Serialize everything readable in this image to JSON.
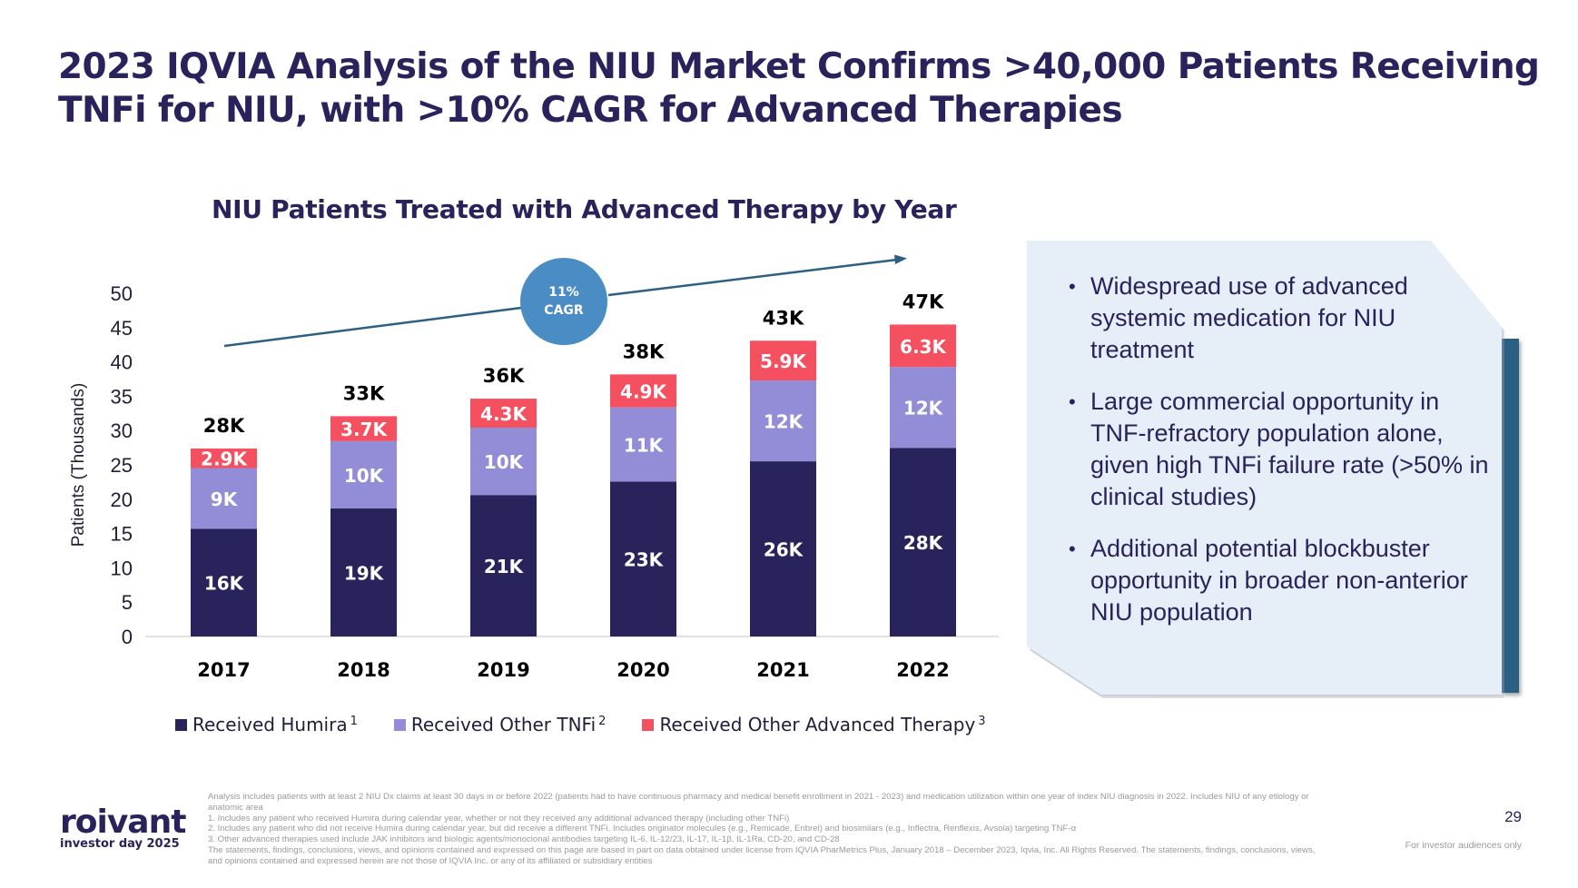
{
  "header": {
    "title": "2023 IQVIA Analysis of the NIU Market Confirms >40,000 Patients Receiving TNFi for NIU, with >10% CAGR for Advanced Therapies"
  },
  "colors": {
    "navy": "#29235c",
    "lavender": "#928dd6",
    "red": "#f4505f",
    "cagr_circle": "#4a8cc4",
    "arrow": "#2c5f84",
    "panel_bg": "#e6eef7",
    "panel_accent": "#2c5f84"
  },
  "chart_data": {
    "type": "bar",
    "stacked": true,
    "title": "NIU Patients Treated with Advanced Therapy by Year",
    "xlabel": "",
    "ylabel": "Patients (Thousands)",
    "ylim": [
      0,
      50
    ],
    "yticks": [
      0,
      5,
      10,
      15,
      20,
      25,
      30,
      35,
      40,
      45,
      50
    ],
    "grid": false,
    "categories": [
      "2017",
      "2018",
      "2019",
      "2020",
      "2021",
      "2022"
    ],
    "series": [
      {
        "name": "Received Humira",
        "footnote": "1",
        "color": "#29235c",
        "values": [
          16,
          19,
          21,
          23,
          26,
          28
        ],
        "labels": [
          "16K",
          "19K",
          "21K",
          "23K",
          "26K",
          "28K"
        ]
      },
      {
        "name": "Received Other TNFi",
        "footnote": "2",
        "color": "#928dd6",
        "values": [
          9,
          10,
          10,
          11,
          12,
          12
        ],
        "labels": [
          "9K",
          "10K",
          "10K",
          "11K",
          "12K",
          "12K"
        ]
      },
      {
        "name": "Received Other Advanced Therapy",
        "footnote": "3",
        "color": "#f4505f",
        "values": [
          2.9,
          3.7,
          4.3,
          4.9,
          5.9,
          6.3
        ],
        "labels": [
          "2.9K",
          "3.7K",
          "4.3K",
          "4.9K",
          "5.9K",
          "6.3K"
        ]
      }
    ],
    "totals": [
      28,
      33,
      36,
      38,
      43,
      47
    ],
    "total_labels": [
      "28K",
      "33K",
      "36K",
      "38K",
      "43K",
      "47K"
    ],
    "annotation": {
      "line1": "11%",
      "line2": "CAGR"
    },
    "legend_position": "bottom"
  },
  "panel": {
    "bullets": [
      "Widespread use of advanced systemic medication for NIU treatment",
      "Large commercial opportunity in TNF-refractory population alone, given high TNFi failure rate (>50% in clinical studies)",
      "Additional potential blockbuster opportunity in broader non-anterior NIU population"
    ],
    "bullet_glyph": "•"
  },
  "footer": {
    "logo_word": "roivant",
    "logo_sub": "investor day 2025",
    "footnotes": [
      "Analysis includes patients with at least 2 NIU Dx claims at least 30 days in or before 2022 (patients had to have continuous pharmacy and medical benefit enrollment in 2021 - 2023) and medication utilization within one year of index NIU diagnosis in 2022. Includes NIU of any etiology or anatomic area",
      "1. Includes any patient who received Humira during calendar year, whether or not they received any additional advanced therapy (including other TNFi)",
      "2. Includes any patient who did not receive Humira during calendar year, but did receive a different TNFi. Includes originator molecules (e.g., Remicade, Enbrel) and biosimilars (e.g., Inflectra, Renflexis, Avsola) targeting TNF-α",
      "3. Other advanced therapies used include JAK inhibitors and biologic agents/monoclonal antibodies targeting IL-6, IL-12/23, IL-17, IL-1β, IL-1Ra, CD-20, and CD-28",
      "The statements, findings, conclusions, views, and opinions contained and expressed on this page are based in part on data obtained under license from IQVIA PharMetrics Plus, January 2018 – December 2023, Iqvia, Inc. All Rights Reserved. The statements, findings, conclusions, views, and opinions contained and expressed herein are not those of IQVIA Inc. or any of its affiliated or subsidiary entities"
    ],
    "page_number": "29",
    "disclaimer": "For investor audiences only"
  }
}
